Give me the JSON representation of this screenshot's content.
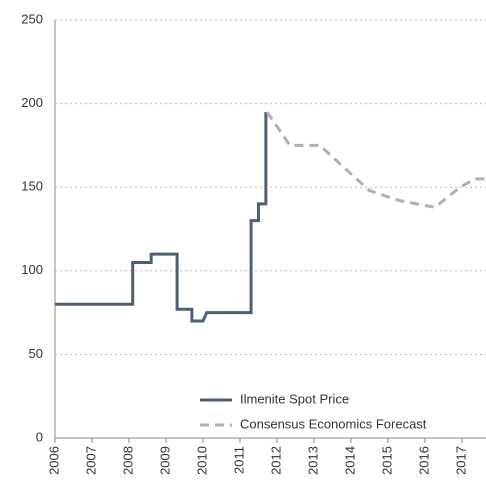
{
  "chart_data": {
    "type": "line",
    "xlim": [
      2006,
      2017.65
    ],
    "xticks": [
      2006,
      2007,
      2008,
      2009,
      2010,
      2011,
      2012,
      2013,
      2014,
      2015,
      2016,
      2017
    ],
    "ylim": [
      0,
      250
    ],
    "yticks": [
      0,
      50,
      100,
      150,
      200,
      250
    ],
    "grid": true,
    "legend": "lower right",
    "series": [
      {
        "name": "Ilmenite Spot Price",
        "color": "#4f6076",
        "style": "solid",
        "x": [
          2006,
          2008.1,
          2008.1,
          2008.6,
          2008.6,
          2009.3,
          2009.3,
          2009.7,
          2009.7,
          2010.0,
          2010.1,
          2011.3,
          2011.3,
          2011.5,
          2011.5,
          2011.7,
          2011.7
        ],
        "values": [
          80,
          80,
          105,
          105,
          110,
          110,
          77,
          77,
          70,
          70,
          75,
          75,
          130,
          130,
          140,
          140,
          195
        ]
      },
      {
        "name": "Consensus Economics Forecast",
        "color": "#b0b0b0",
        "style": "dashed",
        "x": [
          2011.73,
          2012.35,
          2013.16,
          2014.0,
          2014.5,
          2015.3,
          2016.27,
          2016.95,
          2017.35,
          2017.65
        ],
        "values": [
          195,
          175,
          175,
          158,
          148,
          142,
          138,
          150,
          155,
          155
        ]
      }
    ]
  }
}
